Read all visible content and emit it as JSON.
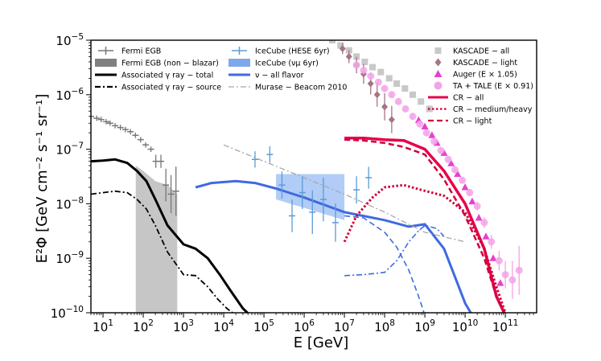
{
  "chart_data": {
    "type": "line",
    "title": "",
    "xlabel": "E [GeV]",
    "ylabel": "E²Φ [GeV cm⁻² s⁻¹ sr⁻¹]",
    "xscale": "log",
    "yscale": "log",
    "xlim": [
      5,
      600000000000.0
    ],
    "ylim": [
      1e-10,
      1e-05
    ],
    "x_ticks": [
      {
        "value": 10,
        "base": "10",
        "exp": "1"
      },
      {
        "value": 100,
        "base": "10",
        "exp": "2"
      },
      {
        "value": 1000,
        "base": "10",
        "exp": "3"
      },
      {
        "value": 10000,
        "base": "10",
        "exp": "4"
      },
      {
        "value": 100000,
        "base": "10",
        "exp": "5"
      },
      {
        "value": 1000000,
        "base": "10",
        "exp": "6"
      },
      {
        "value": 10000000,
        "base": "10",
        "exp": "7"
      },
      {
        "value": 100000000,
        "base": "10",
        "exp": "8"
      },
      {
        "value": 1000000000,
        "base": "10",
        "exp": "9"
      },
      {
        "value": 10000000000,
        "base": "10",
        "exp": "10"
      },
      {
        "value": 100000000000,
        "base": "10",
        "exp": "11"
      }
    ],
    "y_ticks": [
      {
        "value": 1e-10,
        "base": "10",
        "exp": "−10"
      },
      {
        "value": 1e-09,
        "base": "10",
        "exp": "−9"
      },
      {
        "value": 1e-08,
        "base": "10",
        "exp": "−8"
      },
      {
        "value": 1e-07,
        "base": "10",
        "exp": "−7"
      },
      {
        "value": 1e-06,
        "base": "10",
        "exp": "−6"
      },
      {
        "value": 1e-05,
        "base": "10",
        "exp": "−5"
      }
    ],
    "legend_left": [
      {
        "label": "Fermi EGB",
        "style": "errorbar",
        "color": "#777777"
      },
      {
        "label": "Fermi EGB (non − blazar)",
        "style": "band",
        "color": "#808080"
      },
      {
        "label": "Associated γ ray − total",
        "style": "solid",
        "color": "#000000"
      },
      {
        "label": "Associated γ ray − source",
        "style": "dashdot",
        "color": "#000000"
      }
    ],
    "legend_mid": [
      {
        "label": "IceCube (HESE 6yr)",
        "style": "errorbar",
        "color": "#5b9bd5"
      },
      {
        "label": "IceCube (νμ 6yr)",
        "style": "band",
        "color": "#7fa8ec"
      },
      {
        "label": "ν − all flavor",
        "style": "solid",
        "color": "#3f6ae0"
      },
      {
        "label": "Murase − Beacom 2010",
        "style": "dashdot",
        "color": "#a8a8a8"
      }
    ],
    "legend_right": [
      {
        "label": "KASCADE − all",
        "style": "square",
        "color": "#c8c8c8"
      },
      {
        "label": "KASCADE − light",
        "style": "diamond",
        "color": "#a57585"
      },
      {
        "label": "Auger (E × 1.05)",
        "style": "triangle",
        "color": "#e541d1"
      },
      {
        "label": "TA + TALE (E × 0.91)",
        "style": "circle",
        "color": "#f3a3e6"
      },
      {
        "label": "CR − all",
        "style": "solid",
        "color": "#e6004c"
      },
      {
        "label": "CR − medium/heavy",
        "style": "dotted",
        "color": "#d0003a"
      },
      {
        "label": "CR − light",
        "style": "dashed",
        "color": "#d0003a"
      }
    ],
    "series": [
      {
        "name": "Associated γ ray − total",
        "color": "#000000",
        "style": "solid",
        "width": 3,
        "x": [
          5,
          10,
          20,
          40,
          70,
          120,
          200,
          400,
          1000,
          2000,
          4000,
          8000,
          15000,
          30000,
          45000
        ],
        "y": [
          6e-08,
          6.2e-08,
          6.5e-08,
          5.6e-08,
          4e-08,
          2.6e-08,
          1.2e-08,
          4e-09,
          1.8e-09,
          1.5e-09,
          1e-09,
          5e-10,
          2.5e-10,
          1.2e-10,
          9e-11
        ]
      },
      {
        "name": "Associated γ ray − source",
        "color": "#000000",
        "style": "dashdot",
        "width": 1.8,
        "x": [
          5,
          10,
          20,
          40,
          70,
          120,
          200,
          400,
          1000,
          2000,
          4000,
          7000,
          12000,
          20000
        ],
        "y": [
          1.5e-08,
          1.6e-08,
          1.7e-08,
          1.6e-08,
          1.2e-08,
          8e-09,
          4e-09,
          1.3e-09,
          5e-10,
          4.8e-10,
          3e-10,
          1.8e-10,
          1.2e-10,
          9e-11
        ]
      },
      {
        "name": "ν − all flavor",
        "color": "#3f6ae0",
        "style": "solid",
        "width": 3,
        "x": [
          2000,
          5000,
          20000,
          60000,
          200000,
          1000000,
          10000000,
          100000000,
          400000000,
          1000000000,
          3000000000,
          6000000000,
          10000000000,
          15000000000
        ],
        "y": [
          2e-08,
          2.4e-08,
          2.6e-08,
          2.4e-08,
          1.9e-08,
          1.3e-08,
          7e-09,
          5e-09,
          3.8e-09,
          4.2e-09,
          1.5e-09,
          4e-10,
          1.5e-10,
          9e-11
        ]
      },
      {
        "name": "ν − medium/heavy (dashed)",
        "color": "#3f6ae0",
        "style": "dashed",
        "width": 1.6,
        "x": [
          10000000,
          30000000,
          100000000,
          200000000,
          400000000,
          700000000,
          1000000000
        ],
        "y": [
          6e-09,
          5.5e-09,
          3e-09,
          1.6e-09,
          6e-10,
          2e-10,
          9e-11
        ]
      },
      {
        "name": "ν − light (dashdot)",
        "color": "#3f6ae0",
        "style": "dashdot",
        "width": 1.6,
        "x": [
          10000000,
          30000000,
          100000000,
          200000000,
          400000000,
          700000000,
          1000000000,
          2000000000,
          3000000000
        ],
        "y": [
          4.8e-10,
          5e-10,
          5.5e-10,
          9e-10,
          2e-09,
          3.2e-09,
          4e-09,
          3.5e-09,
          2.5e-09
        ]
      },
      {
        "name": "Murase − Beacom 2010",
        "color": "#a8a8a8",
        "style": "dashdot",
        "width": 1.3,
        "x": [
          10000,
          100000,
          1000000,
          10000000,
          100000000,
          1000000000,
          10000000000
        ],
        "y": [
          1.2e-07,
          6e-08,
          3e-08,
          1.5e-08,
          7e-09,
          3e-09,
          2e-09
        ]
      },
      {
        "name": "CR − all",
        "color": "#e6004c",
        "style": "solid",
        "width": 3.5,
        "x": [
          10000000,
          30000000,
          100000000,
          300000000,
          1000000000,
          3000000000,
          10000000000,
          30000000000,
          60000000000,
          100000000000
        ],
        "y": [
          1.6e-07,
          1.6e-07,
          1.5e-07,
          1.45e-07,
          1e-07,
          4e-08,
          1e-08,
          1.5e-09,
          2e-10,
          9e-11
        ]
      },
      {
        "name": "CR − medium/heavy",
        "color": "#d0003a",
        "style": "dotted",
        "width": 3,
        "x": [
          10000000,
          20000000,
          50000000,
          100000000,
          300000000,
          800000000,
          1500000000,
          3000000000,
          10000000000,
          30000000000,
          60000000000,
          100000000000
        ],
        "y": [
          2e-09,
          6e-09,
          1.3e-08,
          2e-08,
          2.2e-08,
          1.8e-08,
          1.6e-08,
          1.4e-08,
          7e-09,
          1.5e-09,
          3e-10,
          1e-10
        ]
      },
      {
        "name": "CR − light",
        "color": "#d0003a",
        "style": "dashed",
        "width": 2.5,
        "x": [
          10000000,
          30000000,
          100000000,
          300000000,
          1000000000,
          3000000000,
          10000000000,
          30000000000,
          60000000000,
          100000000000
        ],
        "y": [
          1.5e-07,
          1.45e-07,
          1.3e-07,
          1.1e-07,
          8e-08,
          2.8e-08,
          6e-09,
          1e-09,
          2e-10,
          9e-11
        ]
      }
    ],
    "bands": [
      {
        "name": "Fermi EGB (non − blazar)",
        "color": "#c0c0c0",
        "x": [
          65,
          100,
          200,
          400,
          700
        ],
        "y_low": [
          1e-10,
          1e-10,
          1e-10,
          1e-10,
          1e-10
        ],
        "y_high": [
          5e-08,
          4e-08,
          2.6e-08,
          2.2e-08,
          1.5e-08
        ]
      },
      {
        "name": "IceCube (νμ 6yr)",
        "color": "#a9c6f5",
        "x": [
          200000,
          10000000
        ],
        "y_low": [
          1.2e-08,
          5e-09
        ],
        "y_high": [
          3.5e-08,
          3.5e-08
        ]
      }
    ],
    "points": [
      {
        "name": "Fermi EGB",
        "color": "#777777",
        "marker": "cross",
        "x": [
          5,
          7,
          9,
          12,
          15,
          20,
          27,
          36,
          48,
          64,
          86,
          115,
          155,
          205,
          275,
          365,
          490,
          650
        ],
        "y": [
          4e-07,
          3.7e-07,
          3.5e-07,
          3.2e-07,
          3e-07,
          2.7e-07,
          2.5e-07,
          2.3e-07,
          2.1e-07,
          1.8e-07,
          1.5e-07,
          1.2e-07,
          1e-07,
          6e-08,
          6e-08,
          2.2e-08,
          1.5e-08,
          1.7e-08
        ],
        "err": [
          0.05,
          0.05,
          0.05,
          0.05,
          0.05,
          0.05,
          0.05,
          0.05,
          0.05,
          0.05,
          0.05,
          0.05,
          0.05,
          0.12,
          0.12,
          0.3,
          0.35,
          0.45
        ]
      },
      {
        "name": "IceCube (HESE 6yr)",
        "color": "#5b9bd5",
        "marker": "cross",
        "x": [
          60000,
          140000,
          280000,
          500000,
          900000,
          1600000,
          3000000,
          6000000,
          20000000,
          40000000
        ],
        "y": [
          6.5e-08,
          8e-08,
          2.2e-08,
          6e-09,
          1.6e-08,
          7e-09,
          1.2e-08,
          4.5e-09,
          1.8e-08,
          3e-08
        ],
        "err": [
          0.15,
          0.15,
          0.25,
          0.3,
          0.3,
          0.4,
          0.4,
          0.35,
          0.25,
          0.2
        ]
      },
      {
        "name": "KASCADE − all",
        "color": "#c8c8c8",
        "marker": "square",
        "x": [
          5000000,
          8000000,
          13000000,
          20000000,
          32000000,
          50000000,
          80000000,
          130000000,
          200000000,
          320000000,
          500000000,
          800000000,
          1300000000
        ],
        "y": [
          1e-05,
          8e-06,
          6.5e-06,
          5e-06,
          4e-06,
          3.2e-06,
          2.6e-06,
          2e-06,
          1.6e-06,
          1.3e-06,
          1e-06,
          7.5e-07,
          5.5e-07
        ]
      },
      {
        "name": "KASCADE − light",
        "color": "#a57585",
        "marker": "diamond",
        "x": [
          9000000,
          13000000,
          20000000,
          30000000,
          45000000,
          65000000,
          100000000,
          150000000
        ],
        "y": [
          7e-06,
          5e-06,
          3.5e-06,
          2.4e-06,
          1.6e-06,
          1e-06,
          6e-07,
          3.5e-07
        ],
        "err": [
          0.1,
          0.12,
          0.15,
          0.18,
          0.2,
          0.22,
          0.25,
          0.25
        ]
      },
      {
        "name": "Auger (E × 1.05)",
        "color": "#e541d1",
        "marker": "triangle",
        "x": [
          700000000,
          1000000000,
          1500000000,
          2000000000,
          3000000000,
          4500000000,
          6500000000,
          10000000000,
          15000000000,
          22000000000,
          33000000000,
          50000000000,
          75000000000
        ],
        "y": [
          3.4e-07,
          2.6e-07,
          1.8e-07,
          1.3e-07,
          8.5e-08,
          5.5e-08,
          3.5e-08,
          2e-08,
          1.1e-08,
          5.5e-09,
          2.5e-09,
          1e-09,
          3.5e-10
        ]
      },
      {
        "name": "TA + TALE (E × 0.91)",
        "color": "#f3a3e6",
        "marker": "circle",
        "x": [
          20000000,
          30000000,
          45000000,
          70000000,
          100000000,
          150000000,
          220000000,
          330000000,
          500000000,
          750000000,
          1100000000,
          1700000000,
          2500000000,
          3800000000,
          5600000000,
          8500000000,
          13000000000,
          20000000000,
          30000000000,
          45000000000,
          70000000000,
          100000000000,
          150000000000,
          220000000000
        ],
        "y": [
          3.5e-06,
          2.8e-06,
          2.2e-06,
          1.7e-06,
          1.3e-06,
          1e-06,
          7.5e-07,
          5.5e-07,
          4e-07,
          2.9e-07,
          2e-07,
          1.4e-07,
          9.5e-08,
          6.5e-08,
          4.2e-08,
          2.7e-08,
          1.6e-08,
          9e-09,
          4.5e-09,
          2e-09,
          9e-10,
          5e-10,
          4e-10,
          6e-10
        ],
        "err": [
          0.05,
          0.05,
          0.05,
          0.05,
          0.05,
          0.05,
          0.05,
          0.05,
          0.05,
          0.05,
          0.05,
          0.05,
          0.05,
          0.05,
          0.05,
          0.06,
          0.07,
          0.08,
          0.1,
          0.13,
          0.18,
          0.25,
          0.35,
          0.45
        ]
      }
    ]
  }
}
